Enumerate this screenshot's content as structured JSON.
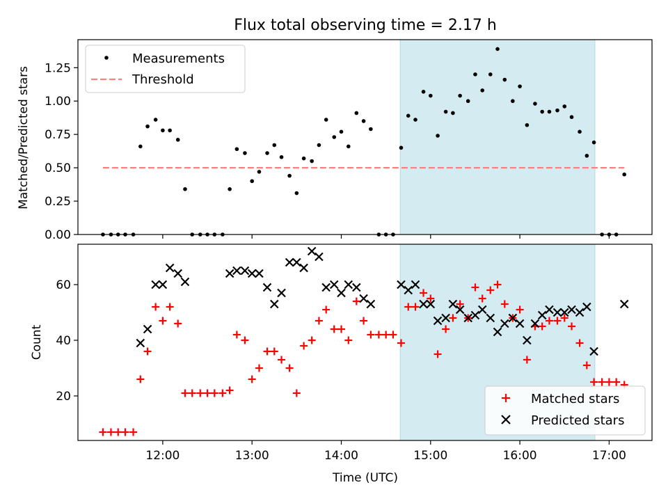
{
  "chart_data": {
    "title": "Flux total observing time = 2.17 h",
    "xlabel": "Time (UTC)",
    "x_unit": "decimal hours UTC",
    "x_ticks": [
      {
        "value": 12,
        "label": "12:00"
      },
      {
        "value": 13,
        "label": "13:00"
      },
      {
        "value": 14,
        "label": "14:00"
      },
      {
        "value": 15,
        "label": "15:00"
      },
      {
        "value": 16,
        "label": "16:00"
      },
      {
        "value": 17,
        "label": "17:00"
      }
    ],
    "xlim": [
      11.05,
      17.48
    ],
    "highlight_span": {
      "x0": 14.66,
      "x1": 16.84,
      "color": "#add8e6"
    },
    "panels": [
      {
        "id": "ratio",
        "type": "scatter",
        "ylabel": "Matched/Predicted stars",
        "ylim": [
          0,
          1.46
        ],
        "y_ticks": [
          {
            "value": 0,
            "label": "0.00"
          },
          {
            "value": 0.25,
            "label": "0.25"
          },
          {
            "value": 0.5,
            "label": "0.50"
          },
          {
            "value": 0.75,
            "label": "0.75"
          },
          {
            "value": 1.0,
            "label": "1.00"
          },
          {
            "value": 1.25,
            "label": "1.25"
          }
        ],
        "legend": {
          "position": "upper-left",
          "entries": [
            "Measurements",
            "Threshold"
          ]
        },
        "threshold": {
          "name": "Threshold",
          "y": 0.5,
          "x0": 11.33,
          "x1": 17.17,
          "color": "#ff8080",
          "style": "dashed"
        },
        "series": [
          {
            "name": "Measurements",
            "color": "#000000",
            "marker": "dot",
            "points": [
              [
                11.33,
                0
              ],
              [
                11.42,
                0
              ],
              [
                11.5,
                0
              ],
              [
                11.58,
                0
              ],
              [
                11.67,
                0
              ],
              [
                11.75,
                0.66
              ],
              [
                11.83,
                0.81
              ],
              [
                11.92,
                0.86
              ],
              [
                12.0,
                0.78
              ],
              [
                12.08,
                0.78
              ],
              [
                12.17,
                0.71
              ],
              [
                12.25,
                0.34
              ],
              [
                12.33,
                0
              ],
              [
                12.42,
                0
              ],
              [
                12.5,
                0
              ],
              [
                12.58,
                0
              ],
              [
                12.67,
                0
              ],
              [
                12.75,
                0.34
              ],
              [
                12.83,
                0.64
              ],
              [
                12.92,
                0.61
              ],
              [
                13.0,
                0.4
              ],
              [
                13.08,
                0.47
              ],
              [
                13.17,
                0.61
              ],
              [
                13.25,
                0.67
              ],
              [
                13.33,
                0.58
              ],
              [
                13.42,
                0.44
              ],
              [
                13.5,
                0.31
              ],
              [
                13.58,
                0.57
              ],
              [
                13.67,
                0.55
              ],
              [
                13.75,
                0.67
              ],
              [
                13.83,
                0.86
              ],
              [
                13.92,
                0.73
              ],
              [
                14.0,
                0.77
              ],
              [
                14.08,
                0.66
              ],
              [
                14.17,
                0.91
              ],
              [
                14.25,
                0.85
              ],
              [
                14.33,
                0.79
              ],
              [
                14.42,
                0
              ],
              [
                14.5,
                0
              ],
              [
                14.58,
                0
              ],
              [
                14.67,
                0.65
              ],
              [
                14.75,
                0.89
              ],
              [
                14.83,
                0.86
              ],
              [
                14.92,
                1.07
              ],
              [
                15.0,
                1.04
              ],
              [
                15.08,
                0.74
              ],
              [
                15.17,
                0.92
              ],
              [
                15.25,
                0.91
              ],
              [
                15.33,
                1.04
              ],
              [
                15.42,
                1.0
              ],
              [
                15.5,
                1.2
              ],
              [
                15.58,
                1.08
              ],
              [
                15.67,
                1.2
              ],
              [
                15.75,
                1.39
              ],
              [
                15.83,
                1.16
              ],
              [
                15.92,
                1.0
              ],
              [
                16.0,
                1.11
              ],
              [
                16.08,
                0.82
              ],
              [
                16.17,
                0.98
              ],
              [
                16.25,
                0.92
              ],
              [
                16.33,
                0.92
              ],
              [
                16.42,
                0.93
              ],
              [
                16.5,
                0.96
              ],
              [
                16.58,
                0.88
              ],
              [
                16.67,
                0.77
              ],
              [
                16.75,
                0.59
              ],
              [
                16.83,
                0.69
              ],
              [
                16.92,
                0
              ],
              [
                17.0,
                0
              ],
              [
                17.08,
                0
              ],
              [
                17.17,
                0.45
              ]
            ]
          }
        ]
      },
      {
        "id": "count",
        "type": "scatter",
        "ylabel": "Count",
        "ylim": [
          4.0,
          74.5
        ],
        "y_ticks": [
          {
            "value": 20,
            "label": "20"
          },
          {
            "value": 40,
            "label": "40"
          },
          {
            "value": 60,
            "label": "60"
          }
        ],
        "legend": {
          "position": "lower-right",
          "entries": [
            "Matched stars",
            "Predicted stars"
          ]
        },
        "series": [
          {
            "name": "Matched stars",
            "color": "#ff0000",
            "marker": "plus",
            "points": [
              [
                11.33,
                7
              ],
              [
                11.42,
                7
              ],
              [
                11.5,
                7
              ],
              [
                11.58,
                7
              ],
              [
                11.67,
                7
              ],
              [
                11.75,
                26
              ],
              [
                11.83,
                36
              ],
              [
                11.92,
                52
              ],
              [
                12.0,
                47
              ],
              [
                12.08,
                52
              ],
              [
                12.17,
                46
              ],
              [
                12.25,
                21
              ],
              [
                12.33,
                21
              ],
              [
                12.42,
                21
              ],
              [
                12.5,
                21
              ],
              [
                12.58,
                21
              ],
              [
                12.67,
                21
              ],
              [
                12.75,
                22
              ],
              [
                12.83,
                42
              ],
              [
                12.92,
                40
              ],
              [
                13.0,
                26
              ],
              [
                13.08,
                30
              ],
              [
                13.17,
                36
              ],
              [
                13.25,
                36
              ],
              [
                13.33,
                33
              ],
              [
                13.42,
                30
              ],
              [
                13.5,
                21
              ],
              [
                13.58,
                38
              ],
              [
                13.67,
                40
              ],
              [
                13.75,
                47
              ],
              [
                13.83,
                51
              ],
              [
                13.92,
                44
              ],
              [
                14.0,
                44
              ],
              [
                14.08,
                40
              ],
              [
                14.17,
                54
              ],
              [
                14.25,
                47
              ],
              [
                14.33,
                42
              ],
              [
                14.42,
                42
              ],
              [
                14.5,
                42
              ],
              [
                14.58,
                42
              ],
              [
                14.67,
                39
              ],
              [
                14.75,
                52
              ],
              [
                14.83,
                52
              ],
              [
                14.92,
                57
              ],
              [
                15.0,
                55
              ],
              [
                15.08,
                35
              ],
              [
                15.17,
                44
              ],
              [
                15.25,
                48
              ],
              [
                15.33,
                53
              ],
              [
                15.42,
                48
              ],
              [
                15.5,
                59
              ],
              [
                15.58,
                55
              ],
              [
                15.67,
                58
              ],
              [
                15.75,
                60
              ],
              [
                15.83,
                53
              ],
              [
                15.92,
                48
              ],
              [
                16.0,
                51
              ],
              [
                16.08,
                33
              ],
              [
                16.17,
                45
              ],
              [
                16.25,
                45
              ],
              [
                16.33,
                47
              ],
              [
                16.42,
                47
              ],
              [
                16.5,
                48
              ],
              [
                16.58,
                45
              ],
              [
                16.67,
                39
              ],
              [
                16.75,
                31
              ],
              [
                16.83,
                25
              ],
              [
                16.92,
                25
              ],
              [
                17.0,
                25
              ],
              [
                17.08,
                25
              ],
              [
                17.17,
                24
              ]
            ]
          },
          {
            "name": "Predicted stars",
            "color": "#000000",
            "marker": "x",
            "points": [
              [
                11.75,
                39
              ],
              [
                11.83,
                44
              ],
              [
                11.92,
                60
              ],
              [
                12.0,
                60
              ],
              [
                12.08,
                66
              ],
              [
                12.17,
                64
              ],
              [
                12.25,
                61
              ],
              [
                12.75,
                64
              ],
              [
                12.83,
                65
              ],
              [
                12.92,
                65
              ],
              [
                13.0,
                64
              ],
              [
                13.08,
                64
              ],
              [
                13.17,
                59
              ],
              [
                13.25,
                53
              ],
              [
                13.33,
                57
              ],
              [
                13.42,
                68
              ],
              [
                13.5,
                68
              ],
              [
                13.58,
                66
              ],
              [
                13.67,
                72
              ],
              [
                13.75,
                70
              ],
              [
                13.83,
                59
              ],
              [
                13.92,
                60
              ],
              [
                14.0,
                57
              ],
              [
                14.08,
                60
              ],
              [
                14.17,
                59
              ],
              [
                14.25,
                55
              ],
              [
                14.33,
                53
              ],
              [
                14.67,
                60
              ],
              [
                14.75,
                58
              ],
              [
                14.83,
                60
              ],
              [
                14.92,
                53
              ],
              [
                15.0,
                53
              ],
              [
                15.08,
                47
              ],
              [
                15.17,
                48
              ],
              [
                15.25,
                53
              ],
              [
                15.33,
                51
              ],
              [
                15.42,
                48
              ],
              [
                15.5,
                49
              ],
              [
                15.58,
                51
              ],
              [
                15.67,
                48
              ],
              [
                15.75,
                43
              ],
              [
                15.83,
                46
              ],
              [
                15.92,
                48
              ],
              [
                16.0,
                46
              ],
              [
                16.08,
                40
              ],
              [
                16.17,
                46
              ],
              [
                16.25,
                49
              ],
              [
                16.33,
                51
              ],
              [
                16.42,
                50
              ],
              [
                16.5,
                50
              ],
              [
                16.58,
                51
              ],
              [
                16.67,
                50
              ],
              [
                16.75,
                52
              ],
              [
                16.83,
                36
              ],
              [
                17.17,
                53
              ]
            ]
          }
        ]
      }
    ]
  }
}
